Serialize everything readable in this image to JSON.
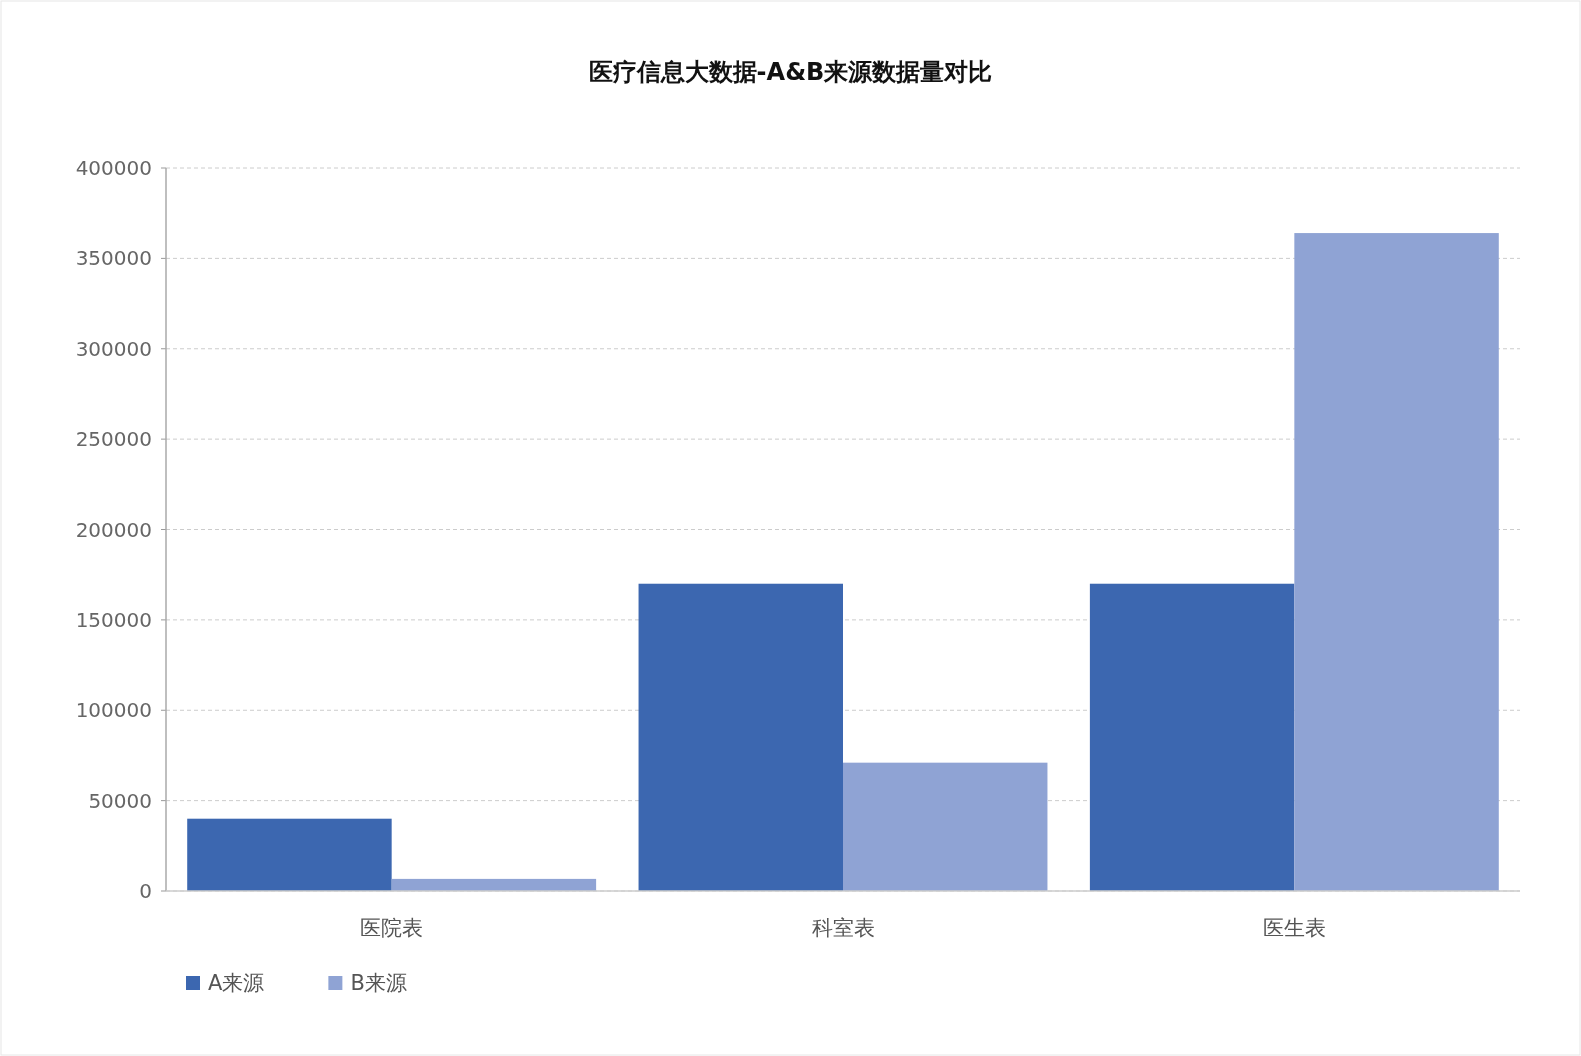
{
  "chart_data": {
    "type": "bar",
    "title": "医疗信息大数据-A&B来源数据量对比",
    "categories": [
      "医院表",
      "科室表",
      "医生表"
    ],
    "series": [
      {
        "name": "A来源",
        "color": "#3c67b0",
        "values": [
          40000,
          170000,
          170000
        ]
      },
      {
        "name": "B来源",
        "color": "#8fa3d4",
        "values": [
          6700,
          71000,
          364000
        ]
      }
    ],
    "ylim": [
      0,
      400000
    ],
    "yticks": [
      0,
      50000,
      100000,
      150000,
      200000,
      250000,
      300000,
      350000,
      400000
    ],
    "grid": "y",
    "legend": "bottom left"
  }
}
